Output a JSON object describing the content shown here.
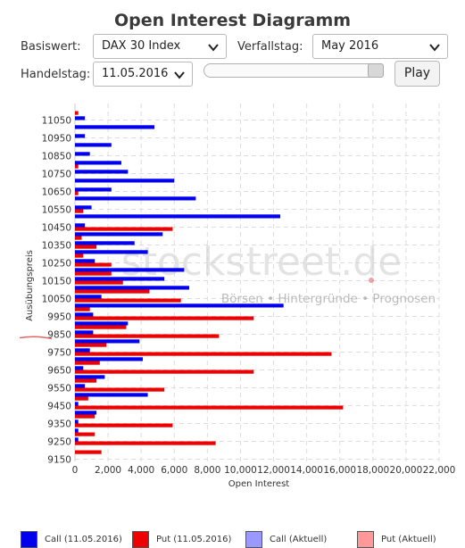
{
  "header": {
    "title": "Open Interest Diagramm",
    "basiswert_label": "Basiswert:",
    "basiswert_value": "DAX 30 Index",
    "verfallstag_label": "Verfallstag:",
    "verfallstag_value": "May 2016",
    "handelstag_label": "Handelstag:",
    "handelstag_value": "11.05.2016",
    "play_label": "Play",
    "slider_position": 1.0
  },
  "watermark": {
    "brand": "stockstreet.de",
    "tagline": "Börsen • Hintergründe • Prognosen"
  },
  "chart_data": {
    "type": "bar",
    "orientation": "horizontal",
    "xlabel": "Open Interest",
    "ylabel": "Ausübungspreis",
    "xlim": [
      0,
      22000
    ],
    "x_ticks": [
      "0",
      "2,000",
      "4,000",
      "6,000",
      "8,000",
      "10,000",
      "12,000",
      "14,000",
      "16,000",
      "18,000",
      "20,000",
      "22,000"
    ],
    "y_tick_labels": [
      "11050",
      "10950",
      "10850",
      "10750",
      "10650",
      "10550",
      "10450",
      "10350",
      "10250",
      "10150",
      "10050",
      "9950",
      "9850",
      "9750",
      "9650",
      "9550",
      "9450",
      "9350",
      "9250",
      "9150"
    ],
    "grid": true,
    "legend_position": "bottom",
    "categories": [
      11100,
      11050,
      11000,
      10950,
      10900,
      10850,
      10800,
      10750,
      10700,
      10650,
      10600,
      10550,
      10500,
      10450,
      10400,
      10350,
      10300,
      10250,
      10200,
      10150,
      10100,
      10050,
      10000,
      9950,
      9900,
      9850,
      9800,
      9750,
      9700,
      9650,
      9600,
      9550,
      9500,
      9450,
      9400,
      9350,
      9300,
      9250,
      9200
    ],
    "series": [
      {
        "name": "Call (11.05.2016)",
        "color": "#0000ee",
        "values": [
          0,
          600,
          4800,
          600,
          2200,
          900,
          2800,
          3200,
          6000,
          2200,
          7300,
          1000,
          12400,
          600,
          5300,
          3600,
          4400,
          1200,
          6600,
          5400,
          6900,
          1600,
          12600,
          1100,
          3200,
          1100,
          3900,
          900,
          4100,
          500,
          1800,
          600,
          4400,
          200,
          1300,
          200,
          200,
          200,
          0
        ]
      },
      {
        "name": "Put (11.05.2016)",
        "color": "#ee0000",
        "values": [
          200,
          0,
          0,
          0,
          0,
          0,
          200,
          0,
          0,
          200,
          0,
          500,
          0,
          5900,
          400,
          1300,
          500,
          2200,
          2200,
          2900,
          4500,
          6400,
          900,
          10800,
          3100,
          8700,
          1900,
          15500,
          1500,
          10800,
          1300,
          5400,
          800,
          16200,
          1200,
          5900,
          1200,
          8500,
          1600
        ]
      }
    ],
    "legend": [
      {
        "label": "Call (11.05.2016)",
        "color": "#0000ee"
      },
      {
        "label": "Put (11.05.2016)",
        "color": "#ee0000"
      },
      {
        "label": "Call (Aktuell)",
        "color": "#9999ff"
      },
      {
        "label": "Put (Aktuell)",
        "color": "#ff9999"
      }
    ],
    "highlight_tick": "9850",
    "highlight_color": "#e06666"
  }
}
